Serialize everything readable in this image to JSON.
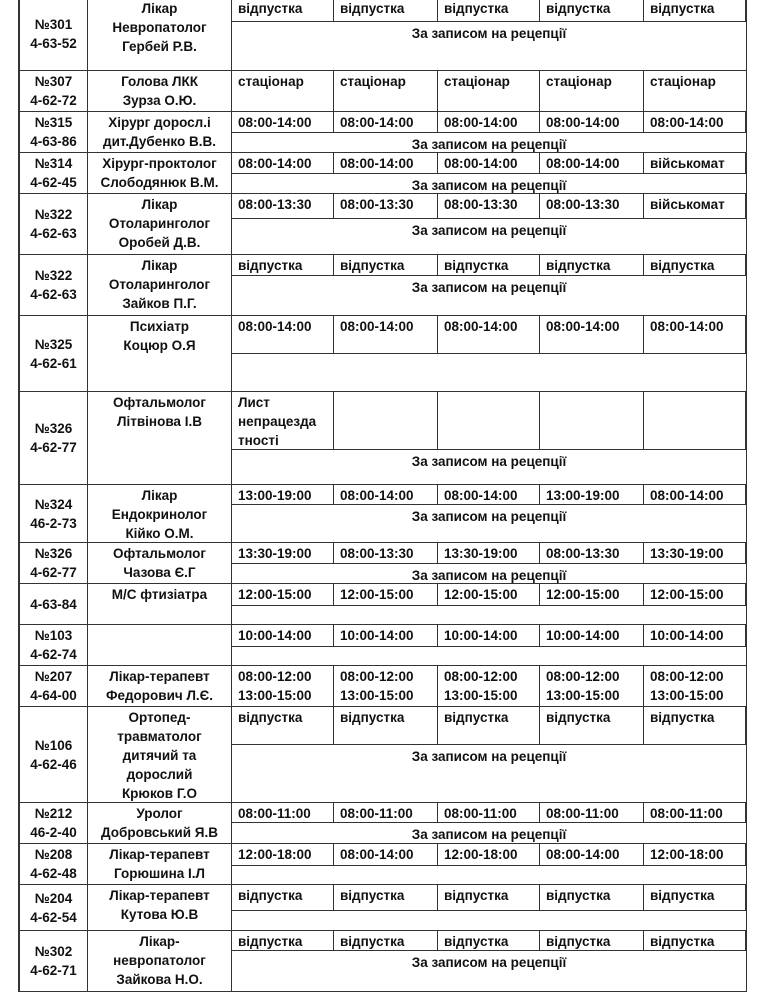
{
  "schedule": [
    {
      "room": "№301",
      "phone": "4-63-52",
      "title": "Лікар\nНевропатолог\nГербей Р.В.",
      "days": [
        "відпустка",
        "відпустка",
        "відпустка",
        "відпустка",
        "відпустка"
      ],
      "note": "За записом на рецепції"
    },
    {
      "room": "№307",
      "phone": "4-62-72",
      "title": "Голова ЛКК\nЗурза О.Ю.",
      "days": [
        "стаціонар",
        "стаціонар",
        "стаціонар",
        "стаціонар",
        "стаціонар"
      ],
      "note": ""
    },
    {
      "room": "№315",
      "phone": "4-63-86",
      "title": "Хірург доросл.і\nдит.Дубенко В.В.",
      "days": [
        "08:00-14:00",
        "08:00-14:00",
        "08:00-14:00",
        "08:00-14:00",
        "08:00-14:00"
      ],
      "note": "За записом на рецепції"
    },
    {
      "room": "№314",
      "phone": "4-62-45",
      "title": "Хірург-проктолог\nСлободянюк В.М.",
      "days": [
        "08:00-14:00",
        "08:00-14:00",
        "08:00-14:00",
        "08:00-14:00",
        "військомат"
      ],
      "note": "За записом на рецепції"
    },
    {
      "room": "№322",
      "phone": "4-62-63",
      "title": "Лікар\nОтоларинголог\nОробей  Д.В.",
      "days": [
        "08:00-13:30",
        "08:00-13:30",
        "08:00-13:30",
        "08:00-13:30",
        "військомат"
      ],
      "note": "За записом на рецепції"
    },
    {
      "room": "№322",
      "phone": "4-62-63",
      "title": "Лікар\nОтоларинголог\nЗайков П.Г.",
      "days": [
        "відпустка",
        "відпустка",
        "відпустка",
        "відпустка",
        "відпустка"
      ],
      "note": "За записом на рецепції"
    },
    {
      "room": "№325",
      "phone": "4-62-61",
      "title": "Психіатр\nКоцюр О.Я",
      "days": [
        "08:00-14:00",
        "08:00-14:00",
        "08:00-14:00",
        "08:00-14:00",
        "08:00-14:00"
      ],
      "note": ""
    },
    {
      "room": "№326",
      "phone": "4-62-77",
      "title": "Офтальмолог\nЛітвінова І.В",
      "days": [
        "Лист\nнепрацезда\nтності",
        "",
        "",
        "",
        ""
      ],
      "note": "За записом на рецепції"
    },
    {
      "room": "№324",
      "phone": "46-2-73",
      "title": "Лікар\nЕндокринолог\nКійко О.М.",
      "days": [
        "13:00-19:00",
        "08:00-14:00",
        "08:00-14:00",
        "13:00-19:00",
        "08:00-14:00"
      ],
      "note": "За записом на рецепції"
    },
    {
      "room": "№326",
      "phone": "4-62-77",
      "title": "Офтальмолог\nЧазова Є.Г",
      "days": [
        "13:30-19:00",
        "08:00-13:30",
        "13:30-19:00",
        "08:00-13:30",
        "13:30-19:00"
      ],
      "note": "За записом на рецепції"
    },
    {
      "room": "",
      "phone": "4-63-84",
      "title": "М/С фтизіатра",
      "days": [
        "12:00-15:00",
        "12:00-15:00",
        "12:00-15:00",
        "12:00-15:00",
        "12:00-15:00"
      ],
      "note": ""
    },
    {
      "room": "№103",
      "phone": "4-62-74",
      "title": "",
      "days": [
        "10:00-14:00",
        "10:00-14:00",
        "10:00-14:00",
        "10:00-14:00",
        "10:00-14:00"
      ],
      "note": ""
    },
    {
      "room": "№207",
      "phone": "4-64-00",
      "title": "Лікар-терапевт\nФедорович Л.Є.",
      "days": [
        "08:00-12:00\n13:00-15:00",
        "08:00-12:00\n13:00-15:00",
        "08:00-12:00\n13:00-15:00",
        "08:00-12:00\n13:00-15:00",
        "08:00-12:00\n13:00-15:00"
      ],
      "note": ""
    },
    {
      "room": "№106",
      "phone": "4-62-46",
      "title": "Ортопед-\nтравматолог\nдитячий та\nдорослий\nКрюков Г.О",
      "days": [
        "відпустка",
        "відпустка",
        "відпустка",
        "відпустка",
        "відпустка"
      ],
      "note": "За записом на рецепції"
    },
    {
      "room": "№212",
      "phone": "46-2-40",
      "title": "Уролог\nДобровський Я.В",
      "days": [
        "08:00-11:00",
        "08:00-11:00",
        "08:00-11:00",
        "08:00-11:00",
        "08:00-11:00"
      ],
      "note": "За записом на рецепції"
    },
    {
      "room": "№208",
      "phone": "4-62-48",
      "title": "Лікар-терапевт\nГорюшина І.Л",
      "days": [
        "12:00-18:00",
        "08:00-14:00",
        "12:00-18:00",
        "08:00-14:00",
        "12:00-18:00"
      ],
      "note": ""
    },
    {
      "room": "№204",
      "phone": "4-62-54",
      "title": "Лікар-терапевт\nКутова Ю.В",
      "days": [
        "відпустка",
        "відпустка",
        "відпустка",
        "відпустка",
        "відпустка"
      ],
      "note": ""
    },
    {
      "room": "№302",
      "phone": "4-62-71",
      "title": "Лікар-\nневропатолог\nЗайкова Н.О.",
      "days": [
        "відпустка",
        "відпустка",
        "відпустка",
        "відпустка",
        "відпустка"
      ],
      "note": "За записом на рецепції"
    }
  ]
}
